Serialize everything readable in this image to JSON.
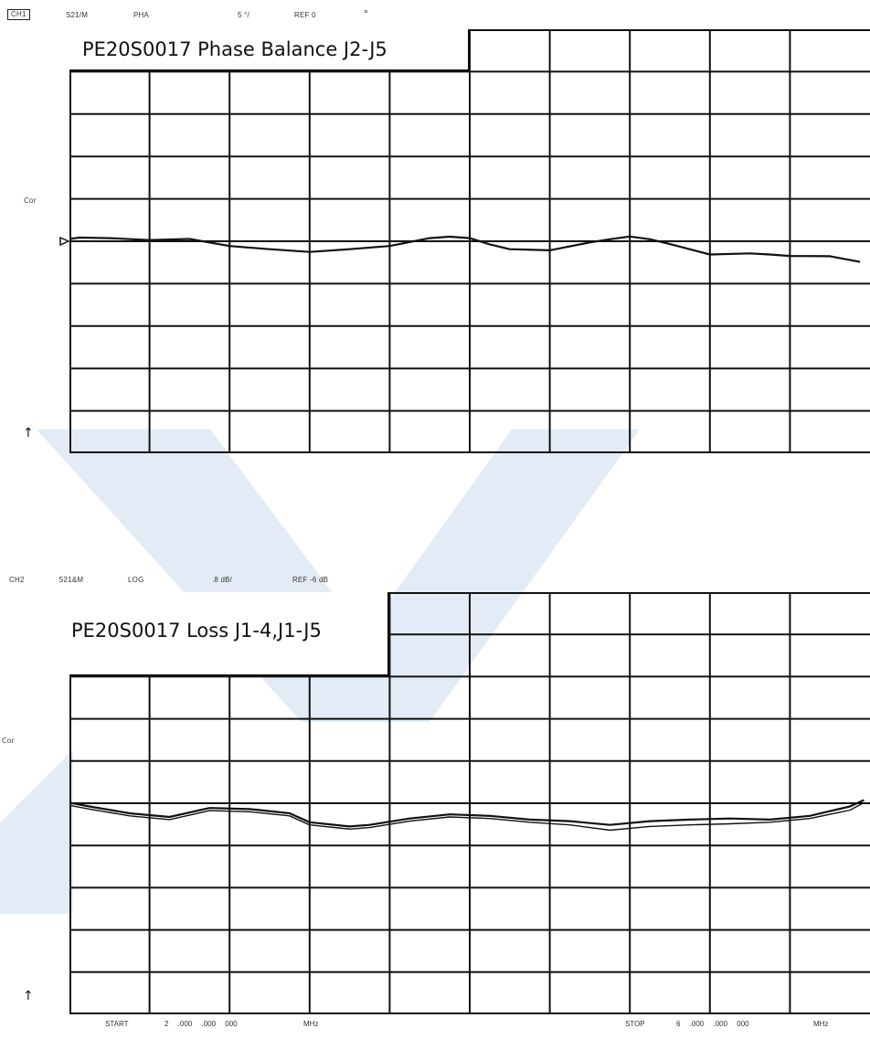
{
  "colors": {
    "trace": "#111111",
    "grid": "#111111",
    "watermark": "#dde8f3"
  },
  "top": {
    "channel": "CH1",
    "param": "S21/M",
    "format": "PHA",
    "scale": "5 °/",
    "ref": "REF 0",
    "ref_mark": "°",
    "cor": "Cor",
    "arrow": "↑",
    "title": "PE20S0017 Phase Balance J2-J5"
  },
  "bottom": {
    "channel": "CH2",
    "param": "S21&M",
    "format": "LOG",
    "scale": ".8 dB/",
    "ref": "REF -6 dB",
    "cor": "Cor",
    "arrow": "↑",
    "title": "PE20S0017 Loss J1-4,J1-J5"
  },
  "footer": {
    "start_label": "START",
    "start_value": "2 .000 .000 000",
    "start_unit": "MHz",
    "stop_label": "STOP",
    "stop_value": "6 .000 .000 000",
    "stop_unit": "MHz"
  },
  "chart_data": [
    {
      "type": "line",
      "title": "PE20S0017 Phase Balance J2-J5",
      "xlabel": "",
      "ylabel": "",
      "x_unit": "MHz",
      "xlim": [
        2000,
        6000
      ],
      "ylim": [
        -25,
        25
      ],
      "y_divisions": 10,
      "y_per_div": 5,
      "reference_value": 0,
      "reference_marker": "left",
      "grid": true,
      "series": [
        {
          "x": [
            2000,
            2050,
            2200,
            2400,
            2600,
            2800,
            3000,
            3200,
            3400,
            3600,
            3800,
            3900,
            4000,
            4100,
            4200,
            4400,
            4600,
            4700,
            4800,
            4900,
            5000,
            5200,
            5400,
            5500,
            5600,
            5800,
            5950
          ],
          "values": [
            0.2,
            0.5,
            0.3,
            0.2,
            0.2,
            -0.5,
            -1.0,
            -1.2,
            -1.0,
            -0.5,
            0.3,
            0.6,
            0.3,
            -0.3,
            -1.0,
            -1.0,
            -0.2,
            0.3,
            0.5,
            0.3,
            -0.4,
            -1.5,
            -1.5,
            -1.5,
            -1.8,
            -1.7,
            -2.5
          ]
        }
      ]
    },
    {
      "type": "line",
      "title": "PE20S0017 Loss J1-4,J1-J5",
      "xlabel": "",
      "ylabel": "",
      "x_unit": "MHz",
      "xlim": [
        2000,
        6000
      ],
      "ylim": [
        -10,
        -2
      ],
      "y_divisions": 10,
      "y_per_div": 0.8,
      "reference_value": -6,
      "grid": true,
      "series": [
        {
          "x": [
            2000,
            2100,
            2300,
            2500,
            2700,
            2900,
            3100,
            3200,
            3400,
            3500,
            3700,
            3900,
            4100,
            4300,
            4500,
            4700,
            4900,
            5100,
            5300,
            5500,
            5700,
            5900,
            5970
          ],
          "values": [
            -6.0,
            -6.05,
            -6.2,
            -6.25,
            -6.1,
            -6.1,
            -6.2,
            -6.35,
            -6.45,
            -6.4,
            -6.3,
            -6.2,
            -6.25,
            -6.3,
            -6.35,
            -6.4,
            -6.35,
            -6.3,
            -6.3,
            -6.3,
            -6.25,
            -6.05,
            -5.95
          ]
        },
        {
          "x": [
            2000,
            2100,
            2300,
            2500,
            2700,
            2900,
            3100,
            3200,
            3400,
            3500,
            3700,
            3900,
            4100,
            4300,
            4500,
            4700,
            4900,
            5100,
            5300,
            5500,
            5700,
            5900,
            5970
          ],
          "values": [
            -6.05,
            -6.1,
            -6.25,
            -6.3,
            -6.15,
            -6.15,
            -6.25,
            -6.4,
            -6.5,
            -6.45,
            -6.35,
            -6.25,
            -6.3,
            -6.35,
            -6.42,
            -6.5,
            -6.45,
            -6.4,
            -6.4,
            -6.35,
            -6.3,
            -6.12,
            -6.0
          ]
        }
      ]
    }
  ]
}
